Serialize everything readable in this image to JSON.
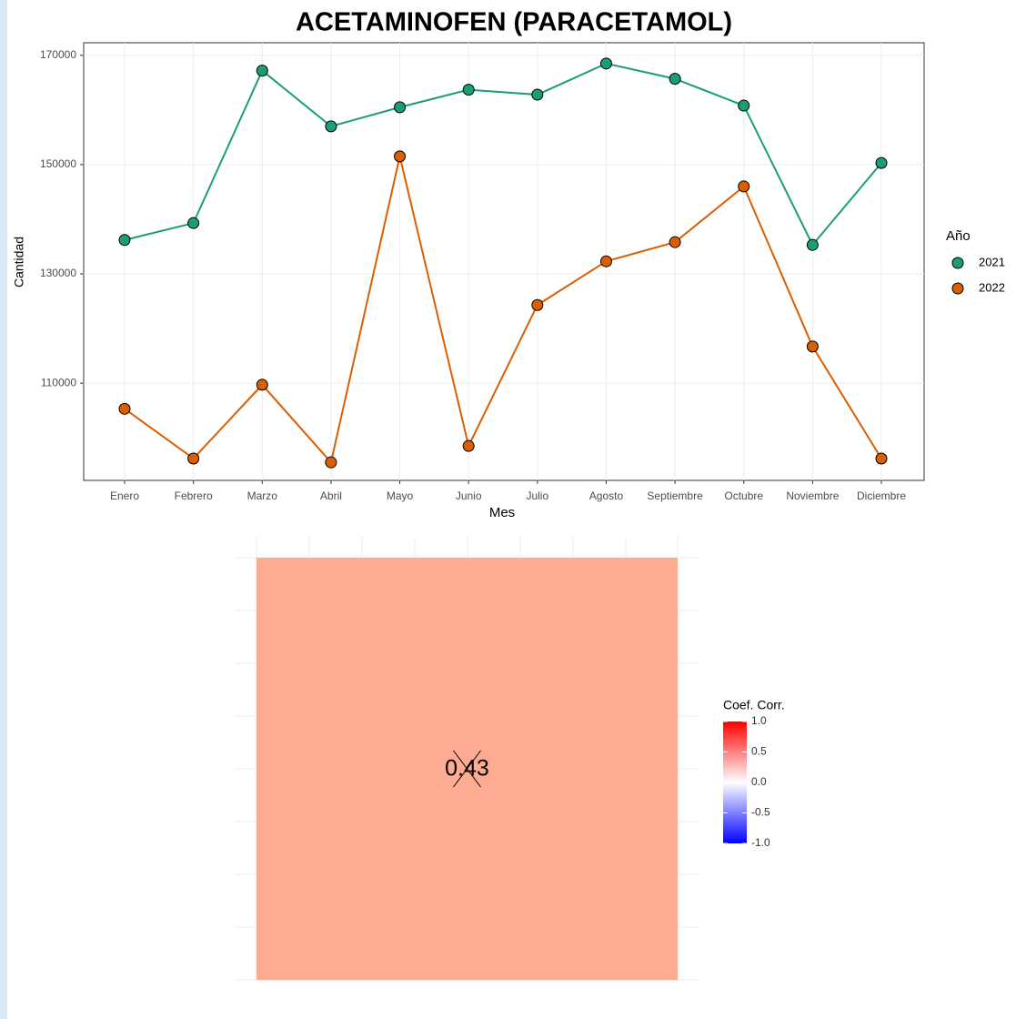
{
  "chart_data": [
    {
      "type": "line",
      "title": "ACETAMINOFEN (PARACETAMOL)",
      "x_label": "Mes",
      "y_label": "Cantidad",
      "categories": [
        "Enero",
        "Febrero",
        "Marzo",
        "Abril",
        "Mayo",
        "Junio",
        "Julio",
        "Agosto",
        "Septiembre",
        "Octubre",
        "Noviembre",
        "Diciembre"
      ],
      "legend_title": "Año",
      "legend": "right",
      "series": [
        {
          "name": "2021",
          "color": "#1b9e77",
          "values": [
            136200,
            139300,
            167200,
            157000,
            160500,
            163700,
            162800,
            168500,
            165700,
            160800,
            135300,
            150300
          ]
        },
        {
          "name": "2022",
          "color": "#d95f02",
          "values": [
            105300,
            96200,
            109700,
            95500,
            151500,
            98500,
            124300,
            132300,
            135800,
            146000,
            116700,
            96200
          ]
        }
      ],
      "ylim": [
        92200,
        172300
      ],
      "yticks": [
        110000,
        130000,
        150000,
        170000
      ],
      "grid": true
    },
    {
      "type": "heatmap",
      "values": [
        [
          0.43
        ]
      ],
      "value_labels": [
        [
          "0.43"
        ]
      ],
      "color": "#fdab92",
      "colorbar_title": "Coef. Corr.",
      "clim": [
        -1,
        1
      ],
      "low": "#0000ff",
      "mid": "#ffffff",
      "high": "#ff0000",
      "cticks": [
        {
          "value": 1,
          "label": "1.0"
        },
        0.5,
        {
          "value": 0,
          "label": "0.0"
        },
        -0.5,
        {
          "value": -1,
          "label": "-1.0"
        }
      ]
    }
  ]
}
